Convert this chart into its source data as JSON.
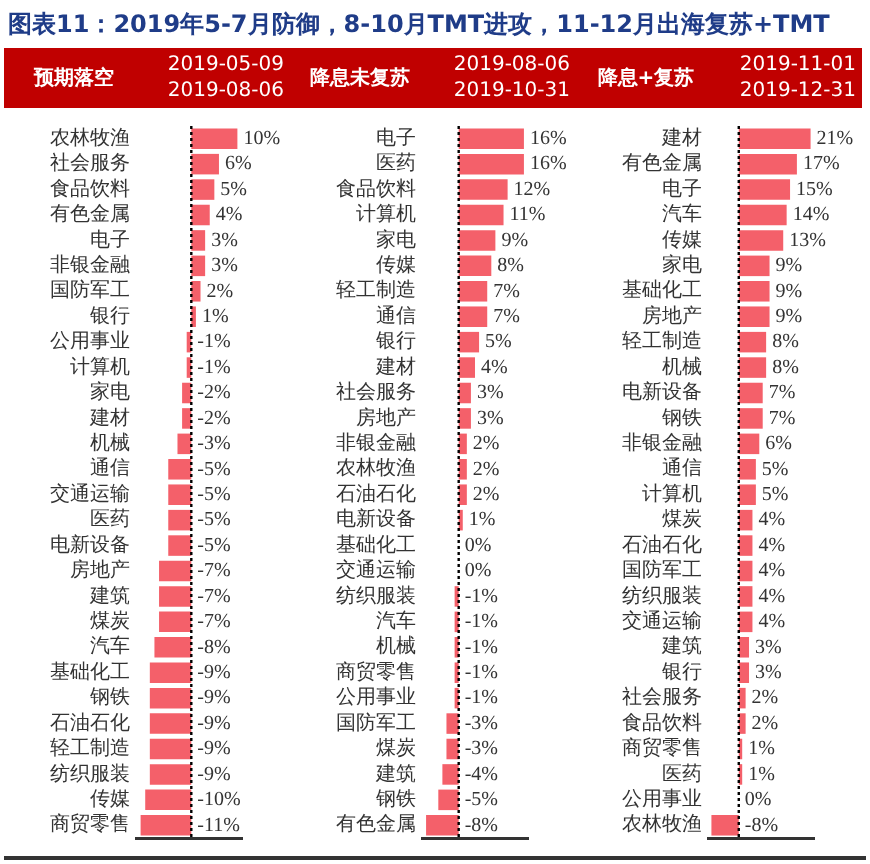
{
  "chart_data": [
    {
      "type": "bar",
      "orientation": "horizontal",
      "title": "图表11：2019年5-7月防御，8-10月TMT进攻，11-12月出海复苏+TMT",
      "ylabel": "预期落空",
      "xlabel": "2019-05-09 2019-08-06",
      "categories": [
        "农林牧渔",
        "社会服务",
        "食品饮料",
        "有色金属",
        "电子",
        "非银金融",
        "国防军工",
        "银行",
        "公用事业",
        "计算机",
        "家电",
        "建材",
        "机械",
        "通信",
        "交通运输",
        "医药",
        "电新设备",
        "房地产",
        "建筑",
        "煤炭",
        "汽车",
        "基础化工",
        "钢铁",
        "石油石化",
        "轻工制造",
        "纺织服装",
        "传媒",
        "商贸零售"
      ],
      "values": [
        10,
        6,
        5,
        4,
        3,
        3,
        2,
        1,
        -1,
        -1,
        -2,
        -2,
        -3,
        -5,
        -5,
        -5,
        -5,
        -7,
        -7,
        -7,
        -8,
        -9,
        -9,
        -9,
        -9,
        -9,
        -10,
        -11
      ],
      "value_labels": [
        "10%",
        "6%",
        "5%",
        "4%",
        "3%",
        "3%",
        "2%",
        "1%",
        "-1%",
        "-1%",
        "-2%",
        "-2%",
        "-3%",
        "-5%",
        "-5%",
        "-5%",
        "-5%",
        "-7%",
        "-7%",
        "-7%",
        "-8%",
        "-9%",
        "-9%",
        "-9%",
        "-9%",
        "-9%",
        "-10%",
        "-11%"
      ],
      "color": "#f4606a",
      "xlim": [
        -12,
        11
      ],
      "tick_labels": "y",
      "grid": false,
      "legend": false,
      "ref_lines": [
        {
          "axis": "x",
          "value": 0,
          "line_style": "dotted",
          "color": "#000000"
        }
      ]
    },
    {
      "type": "bar",
      "orientation": "horizontal",
      "ylabel": "降息未复苏",
      "xlabel": "2019-08-06 2019-10-31",
      "categories": [
        "电子",
        "医药",
        "食品饮料",
        "计算机",
        "家电",
        "传媒",
        "轻工制造",
        "通信",
        "银行",
        "建材",
        "社会服务",
        "房地产",
        "非银金融",
        "农林牧渔",
        "石油石化",
        "电新设备",
        "基础化工",
        "交通运输",
        "纺织服装",
        "汽车",
        "机械",
        "商贸零售",
        "公用事业",
        "国防军工",
        "煤炭",
        "建筑",
        "钢铁",
        "有色金属"
      ],
      "values": [
        16,
        16,
        12,
        11,
        9,
        8,
        7,
        7,
        5,
        4,
        3,
        3,
        2,
        2,
        2,
        1,
        0,
        0,
        -1,
        -1,
        -1,
        -1,
        -1,
        -3,
        -3,
        -4,
        -5,
        -8
      ],
      "value_labels": [
        "16%",
        "16%",
        "12%",
        "11%",
        "9%",
        "8%",
        "7%",
        "7%",
        "5%",
        "4%",
        "3%",
        "3%",
        "2%",
        "2%",
        "2%",
        "1%",
        "0%",
        "0%",
        "-1%",
        "-1%",
        "-1%",
        "-1%",
        "-1%",
        "-3%",
        "-3%",
        "-4%",
        "-5%",
        "-8%"
      ],
      "color": "#f4606a",
      "xlim": [
        -9,
        17
      ],
      "tick_labels": "y",
      "grid": false,
      "legend": false,
      "ref_lines": [
        {
          "axis": "x",
          "value": 0,
          "line_style": "dotted",
          "color": "#000000"
        }
      ]
    },
    {
      "type": "bar",
      "orientation": "horizontal",
      "ylabel": "降息+复苏",
      "xlabel": "2019-11-01 2019-12-31",
      "categories": [
        "建材",
        "有色金属",
        "电子",
        "汽车",
        "传媒",
        "家电",
        "基础化工",
        "房地产",
        "轻工制造",
        "机械",
        "电新设备",
        "钢铁",
        "非银金融",
        "通信",
        "计算机",
        "煤炭",
        "石油石化",
        "国防军工",
        "纺织服装",
        "交通运输",
        "建筑",
        "银行",
        "社会服务",
        "食品饮料",
        "商贸零售",
        "医药",
        "公用事业",
        "农林牧渔"
      ],
      "values": [
        21,
        17,
        15,
        14,
        13,
        9,
        9,
        9,
        8,
        8,
        7,
        7,
        6,
        5,
        5,
        4,
        4,
        4,
        4,
        4,
        3,
        3,
        2,
        2,
        1,
        1,
        0,
        -8
      ],
      "value_labels": [
        "21%",
        "17%",
        "15%",
        "14%",
        "13%",
        "9%",
        "9%",
        "9%",
        "8%",
        "8%",
        "7%",
        "7%",
        "6%",
        "5%",
        "5%",
        "4%",
        "4%",
        "4%",
        "4%",
        "4%",
        "3%",
        "3%",
        "2%",
        "2%",
        "1%",
        "1%",
        "0%",
        "-8%"
      ],
      "color": "#f4606a",
      "xlim": [
        -9,
        22
      ],
      "tick_labels": "y",
      "grid": false,
      "legend": false,
      "ref_lines": [
        {
          "axis": "x",
          "value": 0,
          "line_style": "dotted",
          "color": "#000000"
        }
      ]
    }
  ]
}
